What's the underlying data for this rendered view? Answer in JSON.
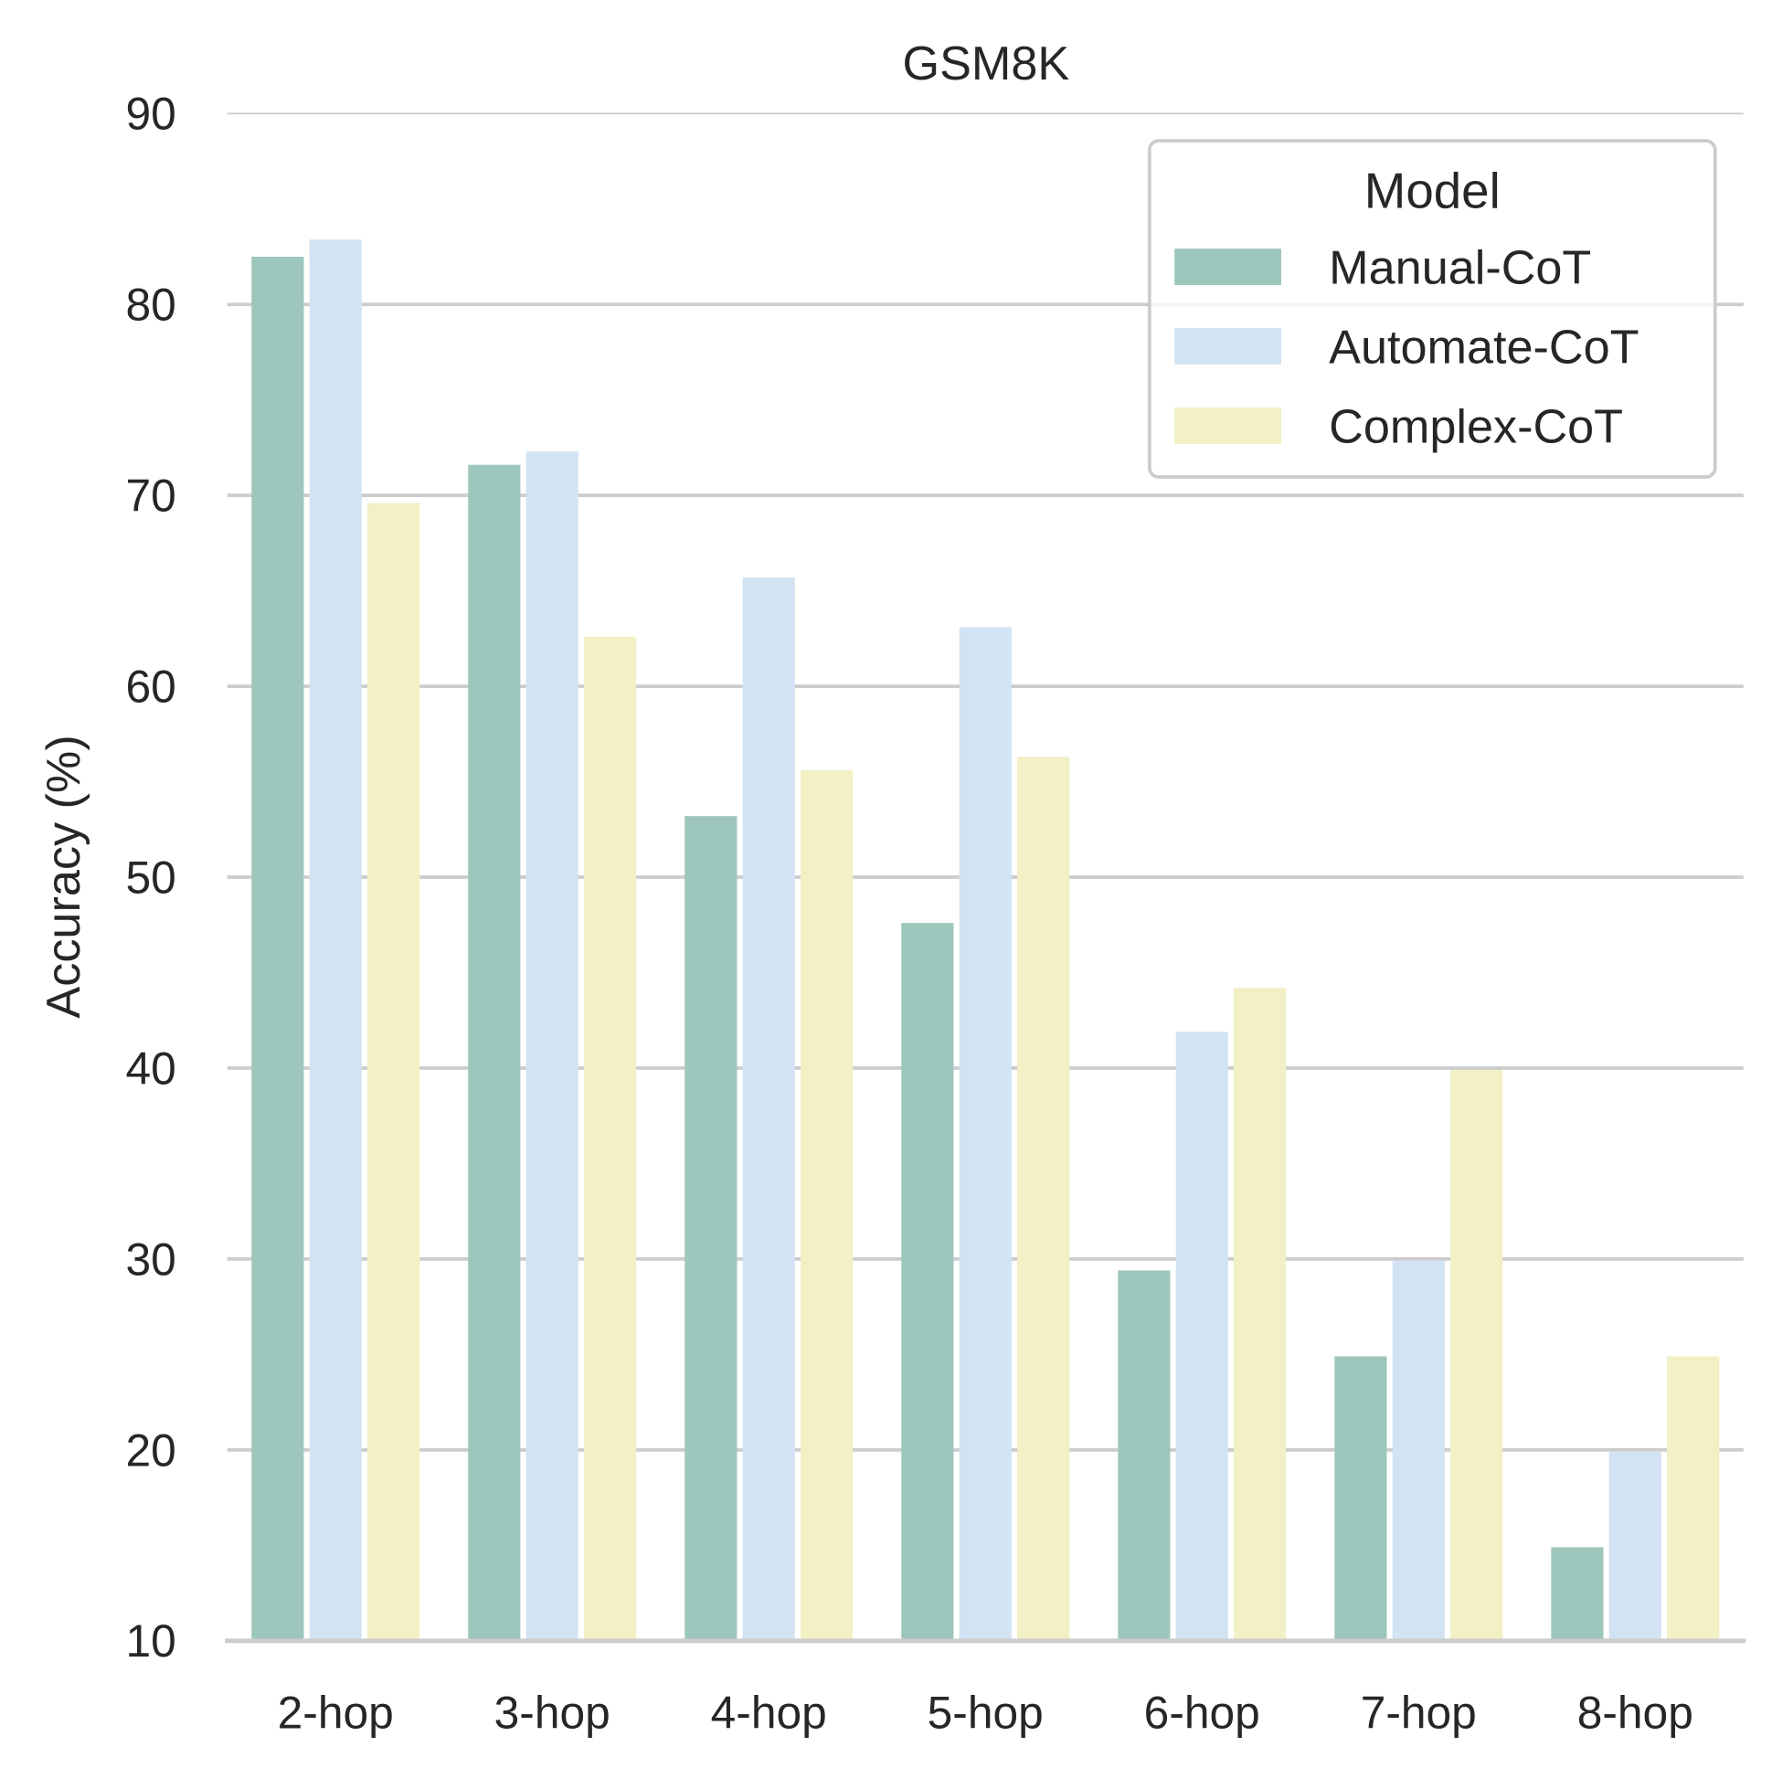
{
  "chart_data": {
    "type": "bar",
    "title": "GSM8K",
    "xlabel": "",
    "ylabel": "Accuracy (%)",
    "ylim": [
      10,
      90
    ],
    "yticks": [
      10,
      20,
      30,
      40,
      50,
      60,
      70,
      80,
      90
    ],
    "grid": "horizontal",
    "categories": [
      "2-hop",
      "3-hop",
      "4-hop",
      "5-hop",
      "6-hop",
      "7-hop",
      "8-hop"
    ],
    "legend": {
      "title": "Model",
      "placement": "top-right"
    },
    "series": [
      {
        "name": "Manual-CoT",
        "color": "#9dc6bc",
        "values": [
          82.5,
          71.6,
          53.2,
          47.6,
          29.4,
          24.9,
          14.9
        ]
      },
      {
        "name": "Automate-CoT",
        "color": "#d2e3f3",
        "values": [
          83.4,
          72.3,
          65.7,
          63.1,
          41.9,
          29.9,
          19.9
        ]
      },
      {
        "name": "Complex-CoT",
        "color": "#f2f0c4",
        "values": [
          69.6,
          62.6,
          55.6,
          56.3,
          44.2,
          39.9,
          24.9
        ]
      }
    ]
  }
}
